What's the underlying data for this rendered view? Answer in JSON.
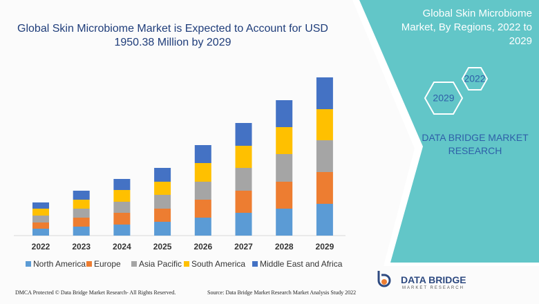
{
  "chart_data": {
    "type": "bar",
    "stacked": true,
    "title": "Global Skin Microbiome Market is Expected to Account for USD 1950.38 Million by 2029",
    "categories": [
      "2022",
      "2023",
      "2024",
      "2025",
      "2026",
      "2027",
      "2028",
      "2029"
    ],
    "series": [
      {
        "name": "North America",
        "color": "#5b9bd5",
        "values": [
          10,
          13,
          16,
          20,
          26,
          33,
          39,
          46
        ]
      },
      {
        "name": "Europe",
        "color": "#ed7d31",
        "values": [
          9,
          13,
          17,
          19,
          26,
          32,
          39,
          46
        ]
      },
      {
        "name": "Asia Pacific",
        "color": "#a5a5a5",
        "values": [
          10,
          13,
          16,
          20,
          26,
          33,
          40,
          46
        ]
      },
      {
        "name": "South America",
        "color": "#ffc000",
        "values": [
          10,
          13,
          17,
          19,
          27,
          32,
          39,
          45
        ]
      },
      {
        "name": "Middle East and Africa",
        "color": "#4472c4",
        "values": [
          9,
          13,
          16,
          20,
          26,
          33,
          39,
          46
        ]
      }
    ]
  },
  "panel": {
    "title": "Global Skin Microbiome Market, By Regions, 2022 to 2029",
    "hexagons": [
      "2022",
      "2029"
    ],
    "company": "DATA BRIDGE MARKET RESEARCH"
  },
  "footer": {
    "copyright": "DMCA Protected © Data Bridge Market Research- All Rights Reserved.",
    "source": "Source: Data Bridge Market Research Market Analysis Study 2022"
  },
  "logo": {
    "name": "DATA BRIDGE",
    "tagline": "MARKET RESEARCH"
  }
}
